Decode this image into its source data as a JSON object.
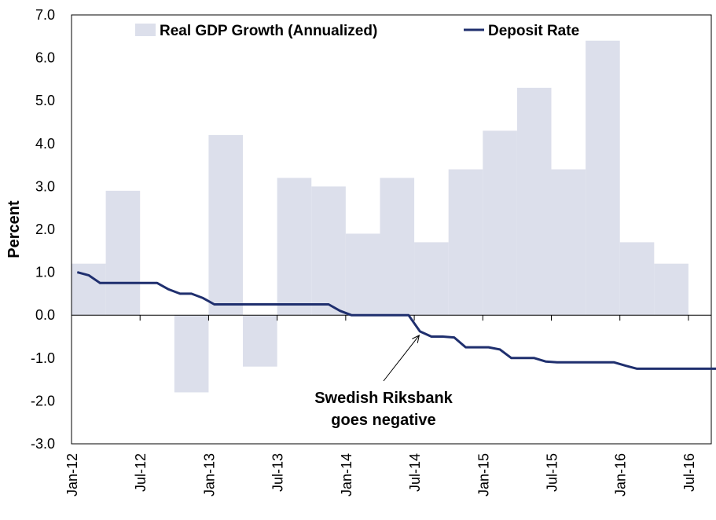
{
  "chart_data": {
    "type": "bar",
    "ylabel": "Percent",
    "xlabel": "",
    "ylim": [
      -3.0,
      7.0
    ],
    "y_ticks": [
      "7.0",
      "6.0",
      "5.0",
      "4.0",
      "3.0",
      "2.0",
      "1.0",
      "0.0",
      "-1.0",
      "-2.0",
      "-3.0"
    ],
    "x_ticks": [
      "Jan-12",
      "Jul-12",
      "Jan-13",
      "Jul-13",
      "Jan-14",
      "Jul-14",
      "Jan-15",
      "Jul-15",
      "Jan-16",
      "Jul-16"
    ],
    "legend_position": "top",
    "grid": false,
    "colors": {
      "bars": "#dcdfeb",
      "line": "#1f2f6e"
    },
    "series": [
      {
        "name": "Real GDP Growth (Annualized)",
        "type": "bar",
        "categories": [
          "2012Q1",
          "2012Q2",
          "2012Q3",
          "2012Q4",
          "2013Q1",
          "2013Q2",
          "2013Q3",
          "2013Q4",
          "2014Q1",
          "2014Q2",
          "2014Q3",
          "2014Q4",
          "2015Q1",
          "2015Q2",
          "2015Q3",
          "2015Q4",
          "2016Q1",
          "2016Q2"
        ],
        "values": [
          1.2,
          2.9,
          0.0,
          -1.8,
          4.2,
          -1.2,
          3.2,
          3.0,
          1.9,
          3.2,
          1.7,
          3.4,
          4.3,
          5.3,
          3.4,
          6.4,
          1.7,
          1.2
        ]
      },
      {
        "name": "Deposit Rate",
        "type": "line",
        "points": [
          [
            "2012-01",
            1.0
          ],
          [
            "2012-02",
            0.93
          ],
          [
            "2012-03",
            0.75
          ],
          [
            "2012-04",
            0.75
          ],
          [
            "2012-05",
            0.75
          ],
          [
            "2012-06",
            0.75
          ],
          [
            "2012-07",
            0.75
          ],
          [
            "2012-08",
            0.75
          ],
          [
            "2012-09",
            0.6
          ],
          [
            "2012-10",
            0.5
          ],
          [
            "2012-11",
            0.5
          ],
          [
            "2012-12",
            0.4
          ],
          [
            "2013-01",
            0.25
          ],
          [
            "2013-02",
            0.25
          ],
          [
            "2013-03",
            0.25
          ],
          [
            "2013-04",
            0.25
          ],
          [
            "2013-05",
            0.25
          ],
          [
            "2013-06",
            0.25
          ],
          [
            "2013-07",
            0.25
          ],
          [
            "2013-08",
            0.25
          ],
          [
            "2013-09",
            0.25
          ],
          [
            "2013-10",
            0.25
          ],
          [
            "2013-11",
            0.25
          ],
          [
            "2013-12",
            0.1
          ],
          [
            "2014-01",
            0.0
          ],
          [
            "2014-02",
            0.0
          ],
          [
            "2014-03",
            0.0
          ],
          [
            "2014-04",
            0.0
          ],
          [
            "2014-05",
            0.0
          ],
          [
            "2014-06",
            0.0
          ],
          [
            "2014-07",
            -0.38
          ],
          [
            "2014-08",
            -0.5
          ],
          [
            "2014-09",
            -0.5
          ],
          [
            "2014-10",
            -0.52
          ],
          [
            "2014-11",
            -0.75
          ],
          [
            "2014-12",
            -0.75
          ],
          [
            "2015-01",
            -0.75
          ],
          [
            "2015-02",
            -0.8
          ],
          [
            "2015-03",
            -1.0
          ],
          [
            "2015-04",
            -1.0
          ],
          [
            "2015-05",
            -1.0
          ],
          [
            "2015-06",
            -1.08
          ],
          [
            "2015-07",
            -1.1
          ],
          [
            "2015-08",
            -1.1
          ],
          [
            "2015-09",
            -1.1
          ],
          [
            "2015-10",
            -1.1
          ],
          [
            "2015-11",
            -1.1
          ],
          [
            "2015-12",
            -1.1
          ],
          [
            "2016-01",
            -1.18
          ],
          [
            "2016-02",
            -1.25
          ],
          [
            "2016-03",
            -1.25
          ],
          [
            "2016-04",
            -1.25
          ],
          [
            "2016-05",
            -1.25
          ],
          [
            "2016-06",
            -1.25
          ],
          [
            "2016-07",
            -1.25
          ],
          [
            "2016-08",
            -1.25
          ],
          [
            "2016-09",
            -1.25
          ]
        ]
      }
    ],
    "annotations": [
      {
        "lines": [
          "Swedish Riksbank",
          "goes negative"
        ],
        "points_to": [
          "2014-07",
          -0.38
        ]
      }
    ]
  }
}
